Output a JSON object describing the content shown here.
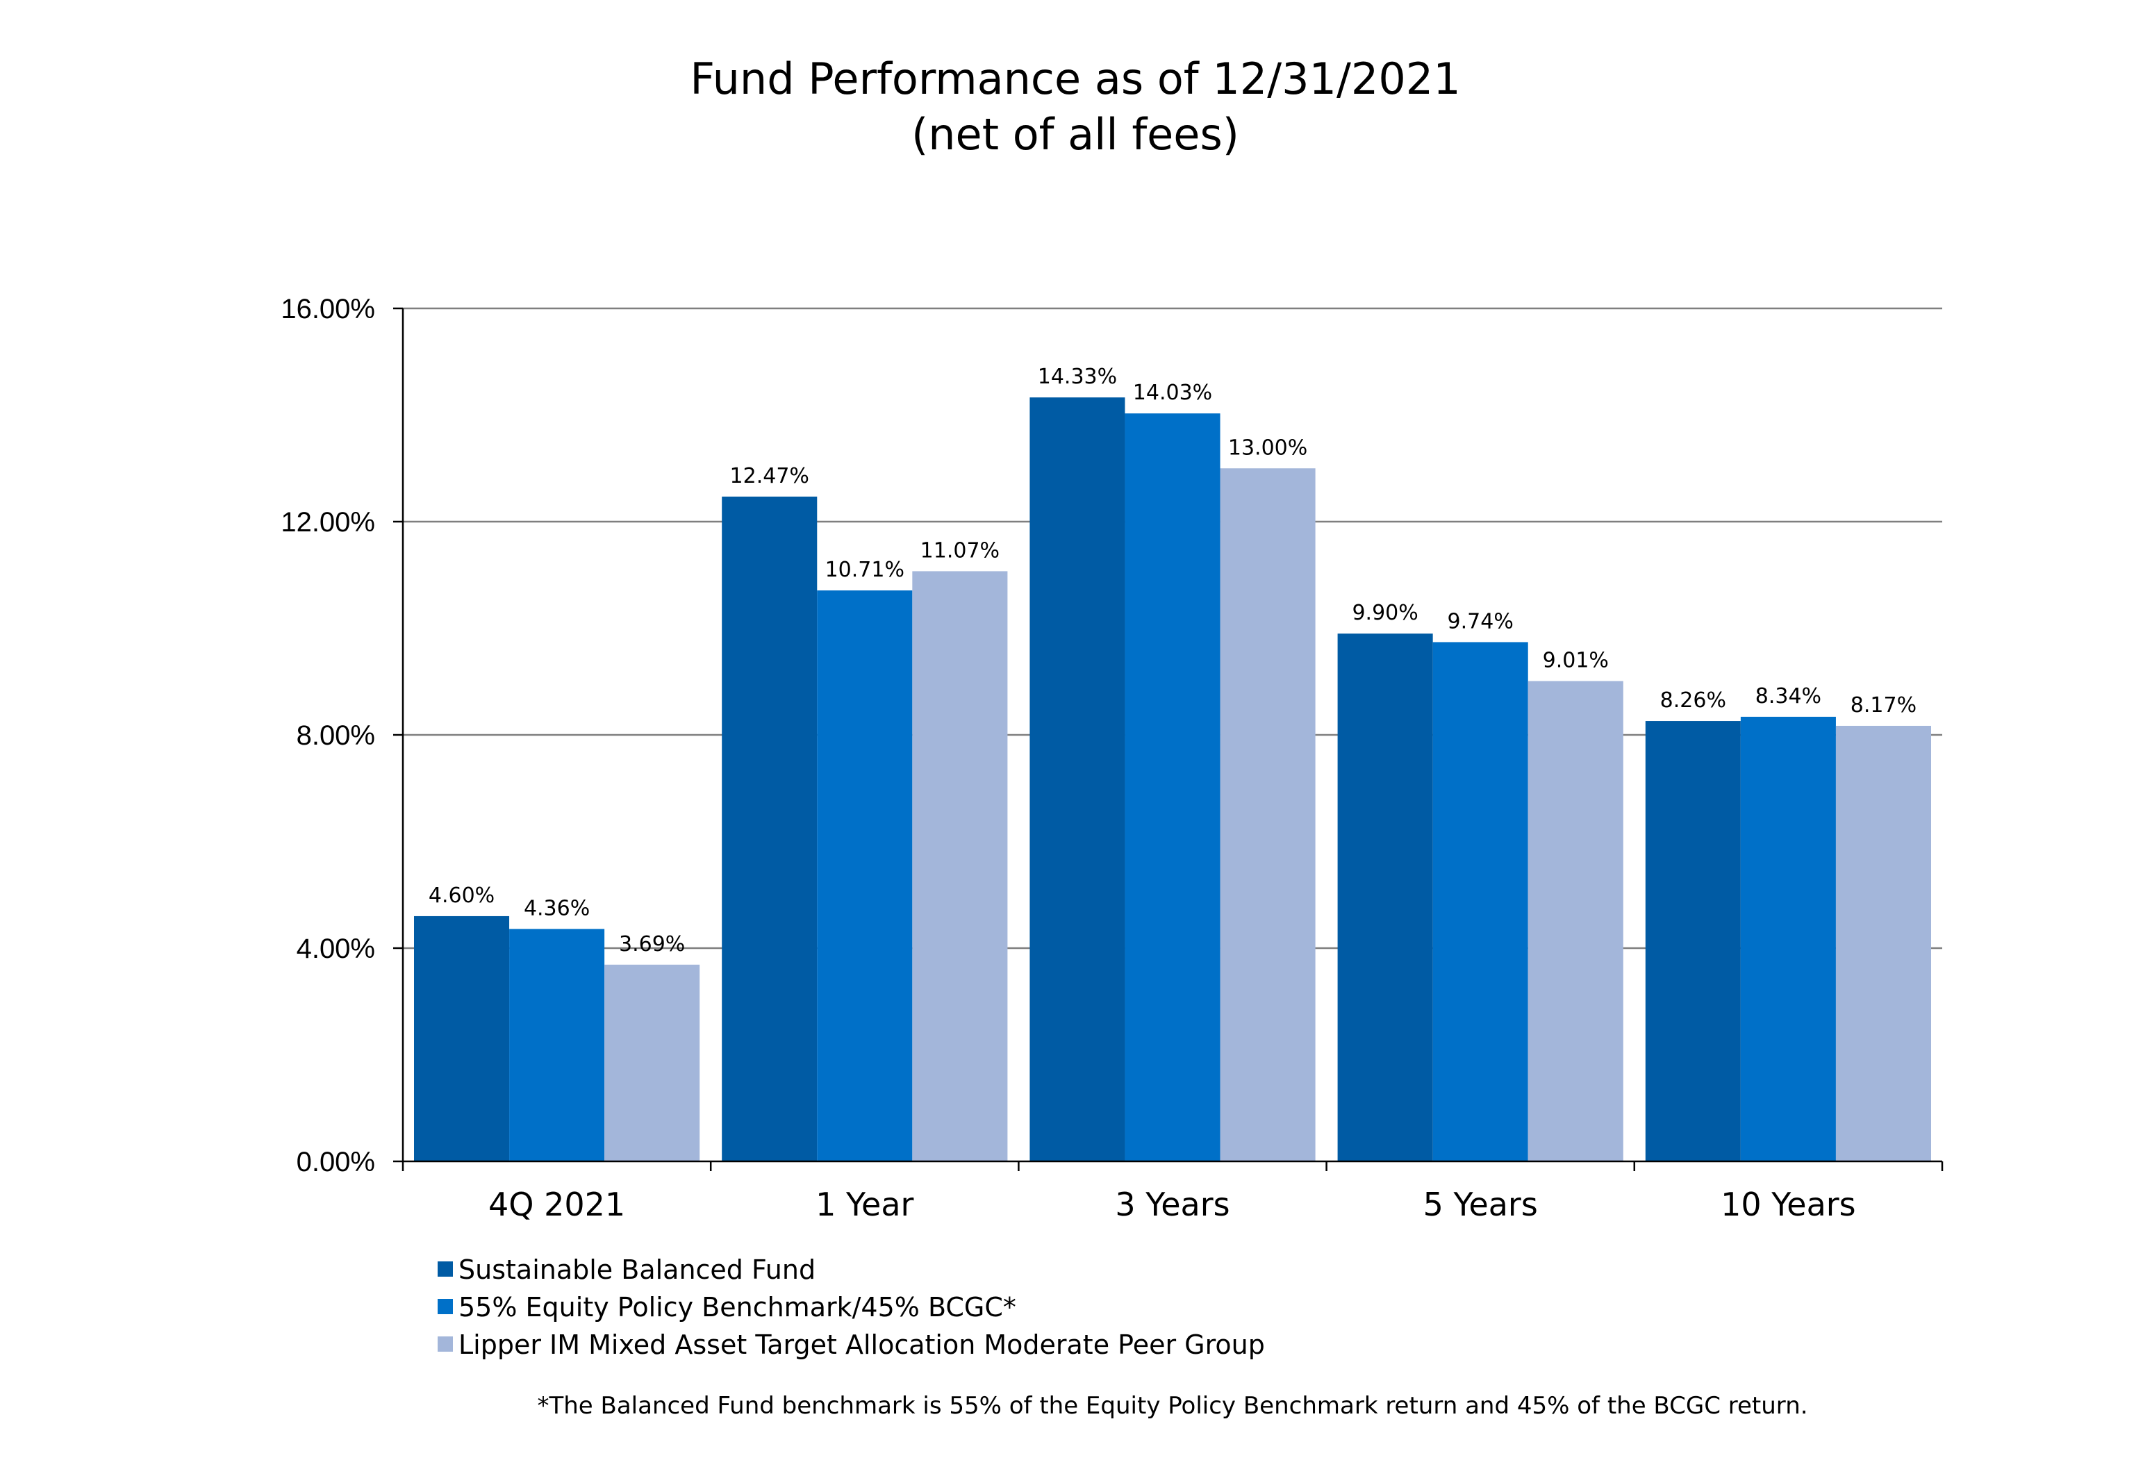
{
  "chart_data": {
    "type": "bar",
    "title": "Fund Performance as of  12/31/2021",
    "subtitle": "(net of all fees)",
    "categories": [
      "4Q 2021",
      "1 Year",
      "3 Years",
      "5 Years",
      "10 Years"
    ],
    "series": [
      {
        "name": "Sustainable Balanced Fund",
        "color": "#005ba4",
        "values": [
          4.6,
          12.47,
          14.33,
          9.9,
          8.26
        ],
        "labels": [
          "4.60%",
          "12.47%",
          "14.33%",
          "9.90%",
          "8.26%"
        ]
      },
      {
        "name": "55% Equity Policy Benchmark/45% BCGC*",
        "color": "#0070c8",
        "values": [
          4.36,
          10.71,
          14.03,
          9.74,
          8.34
        ],
        "labels": [
          "4.36%",
          "10.71%",
          "14.03%",
          "9.74%",
          "8.34%"
        ]
      },
      {
        "name": "Lipper IM Mixed Asset Target Allocation Moderate Peer Group",
        "color": "#a3b6da",
        "values": [
          3.69,
          11.07,
          13.0,
          9.01,
          8.17
        ],
        "labels": [
          "3.69%",
          "11.07%",
          "13.00%",
          "9.01%",
          "8.17%"
        ]
      }
    ],
    "ylim": [
      0,
      16
    ],
    "yticks": [
      0,
      4,
      8,
      12,
      16
    ],
    "ytick_labels": [
      "0.00%",
      "4.00%",
      "8.00%",
      "12.00%",
      "16.00%"
    ],
    "grid": true,
    "legend_position": "bottom-left",
    "footnote": "*The Balanced Fund benchmark is 55% of the Equity Policy Benchmark return and 45% of the BCGC return."
  }
}
